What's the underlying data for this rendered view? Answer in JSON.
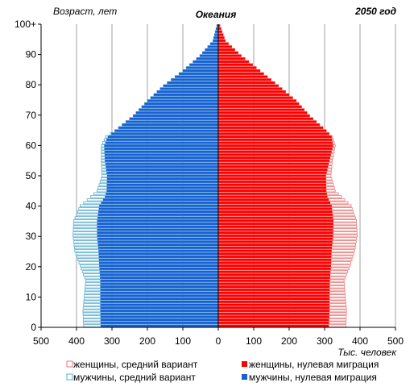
{
  "chart_data": {
    "type": "bar",
    "orientation": "horizontal-population-pyramid",
    "title": "Океания",
    "year_label": "2050 год",
    "ylabel": "Возраст, лет",
    "xlabel": "Тыс. человек",
    "xlim": [
      -500,
      500
    ],
    "ylim": [
      0,
      100
    ],
    "x_ticks": [
      {
        "value": -500,
        "label": "500"
      },
      {
        "value": -400,
        "label": "400"
      },
      {
        "value": -300,
        "label": "300"
      },
      {
        "value": -200,
        "label": "200"
      },
      {
        "value": -100,
        "label": "100"
      },
      {
        "value": 0,
        "label": "0"
      },
      {
        "value": 100,
        "label": "100"
      },
      {
        "value": 200,
        "label": "200"
      },
      {
        "value": 300,
        "label": "300"
      },
      {
        "value": 400,
        "label": "400"
      },
      {
        "value": 500,
        "label": "500"
      }
    ],
    "y_ticks": [
      {
        "value": 0,
        "label": "0"
      },
      {
        "value": 10,
        "label": "10"
      },
      {
        "value": 20,
        "label": "20"
      },
      {
        "value": 30,
        "label": "30"
      },
      {
        "value": 40,
        "label": "40"
      },
      {
        "value": 50,
        "label": "50"
      },
      {
        "value": 60,
        "label": "60"
      },
      {
        "value": 70,
        "label": "70"
      },
      {
        "value": 80,
        "label": "80"
      },
      {
        "value": 90,
        "label": "90"
      },
      {
        "value": 100,
        "label": "100+"
      }
    ],
    "grid": "vertical",
    "legend_position": "bottom",
    "colors": {
      "female_medium": "#e87a7a",
      "male_medium": "#5aaecf",
      "female_zero": "#ff0000",
      "male_zero": "#1a5fd6",
      "grid": "#a0a0a0"
    },
    "age_anchors": [
      0,
      5,
      10,
      15,
      20,
      25,
      30,
      35,
      40,
      43,
      45,
      50,
      55,
      60,
      63,
      65,
      70,
      75,
      80,
      85,
      90,
      95,
      100
    ],
    "series": [
      {
        "name": "женщины, средний вариант",
        "side": "right",
        "values": [
          360,
          362,
          358,
          355,
          372,
          385,
          392,
          390,
          375,
          348,
          330,
          318,
          322,
          330,
          322,
          305,
          258,
          220,
          170,
          118,
          65,
          20,
          5
        ]
      },
      {
        "name": "женщины, нулевая миграция",
        "side": "right",
        "values": [
          312,
          314,
          314,
          315,
          318,
          320,
          324,
          325,
          320,
          308,
          305,
          304,
          314,
          324,
          320,
          305,
          258,
          220,
          170,
          118,
          65,
          20,
          5
        ]
      },
      {
        "name": "мужчины, средний вариант",
        "side": "left",
        "values": [
          380,
          382,
          378,
          374,
          390,
          405,
          410,
          408,
          390,
          360,
          342,
          328,
          330,
          330,
          318,
          292,
          240,
          200,
          155,
          100,
          52,
          15,
          4
        ]
      },
      {
        "name": "мужчины, нулевая миграция",
        "side": "left",
        "values": [
          332,
          333,
          333,
          333,
          336,
          338,
          342,
          342,
          336,
          320,
          315,
          314,
          320,
          322,
          312,
          292,
          240,
          200,
          155,
          100,
          52,
          15,
          4
        ]
      }
    ]
  }
}
